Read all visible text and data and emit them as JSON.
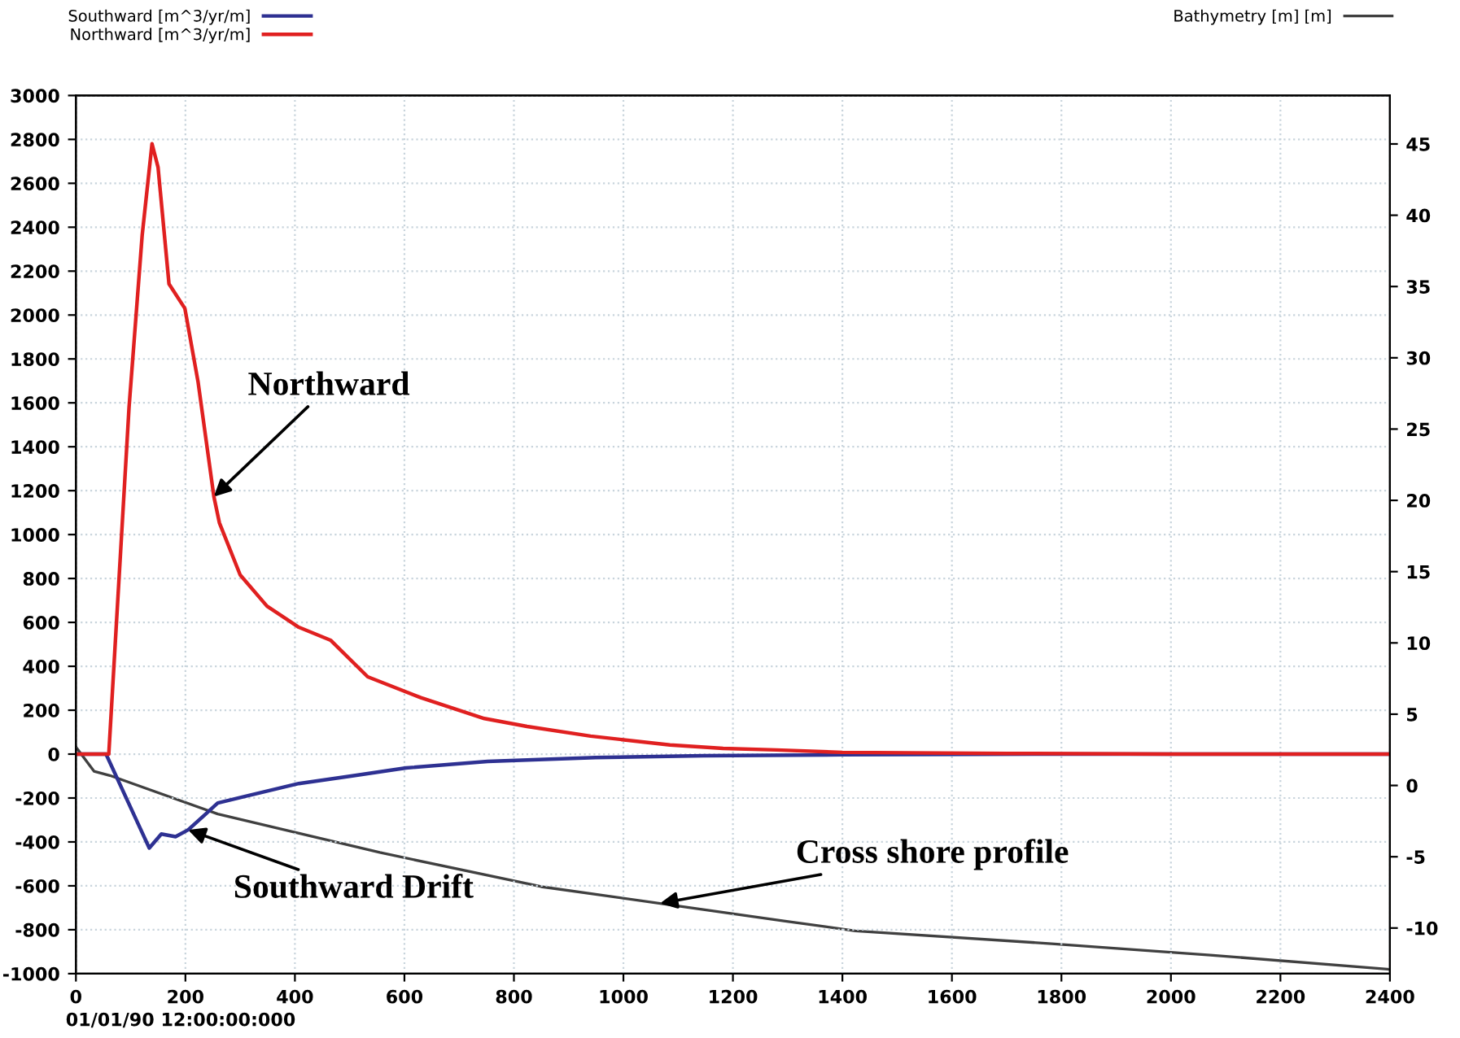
{
  "chart_data": {
    "type": "line",
    "xlim": [
      0,
      2400
    ],
    "xticks": [
      0,
      200,
      400,
      600,
      800,
      1000,
      1200,
      1400,
      1600,
      1800,
      2000,
      2200,
      2400
    ],
    "ylim": [
      -1000,
      3000
    ],
    "yticks": [
      -1000,
      -800,
      -600,
      -400,
      -200,
      0,
      200,
      400,
      600,
      800,
      1000,
      1200,
      1400,
      1600,
      1800,
      2000,
      2200,
      2400,
      2600,
      2800,
      3000
    ],
    "y2lim": [
      -13.2,
      48.4
    ],
    "y2ticks": [
      -10,
      -5,
      0,
      5,
      10,
      15,
      20,
      25,
      30,
      35,
      40,
      45
    ],
    "grid": true,
    "legend": "top",
    "line_style": "solid",
    "marker": "none",
    "series": [
      {
        "name": "Southward [m^3/yr/m]",
        "color": "#2e3192",
        "x": [
          0,
          55,
          134,
          156,
          182,
          205,
          259,
          308,
          407,
          505,
          603,
          752,
          949,
          1146,
          1400,
          1800,
          2400
        ],
        "values": [
          0,
          0,
          -428,
          -364,
          -376,
          -345,
          -223,
          -193,
          -134,
          -99,
          -63,
          -33,
          -16,
          -7,
          -3,
          0,
          0
        ]
      },
      {
        "name": "Northward [m^3/yr/m]",
        "color": "#e02020",
        "x": [
          0,
          60,
          97,
          121,
          139,
          150,
          170,
          199,
          223,
          252,
          262,
          300,
          349,
          407,
          465,
          533,
          630,
          746,
          824,
          940,
          1085,
          1182,
          1279,
          1400,
          1700,
          2000,
          2400
        ],
        "values": [
          0,
          0,
          1578,
          2363,
          2780,
          2673,
          2142,
          2030,
          1697,
          1173,
          1054,
          816,
          674,
          578,
          519,
          352,
          257,
          162,
          126,
          82,
          42,
          26,
          19,
          8,
          3,
          0,
          0
        ]
      },
      {
        "name": "Bathymetry [m] [m]",
        "color": "#404040",
        "axis": "y2",
        "x": [
          0,
          33,
          62,
          259,
          555,
          850,
          1146,
          1293,
          1424,
          1782,
          2072,
          2400
        ],
        "values": [
          2.7,
          1.0,
          0.7,
          -2.0,
          -4.7,
          -7.1,
          -8.7,
          -9.5,
          -10.2,
          -11.1,
          -11.9,
          -12.9
        ]
      }
    ],
    "annotations": [
      {
        "text": "Northward",
        "x": 252,
        "y": 1173
      },
      {
        "text": "Southward Drift",
        "x": 205,
        "y": -345
      },
      {
        "text": "Cross shore profile",
        "x": 1067,
        "y": -680
      },
      "01/01/90 12:00:00:000"
    ]
  }
}
